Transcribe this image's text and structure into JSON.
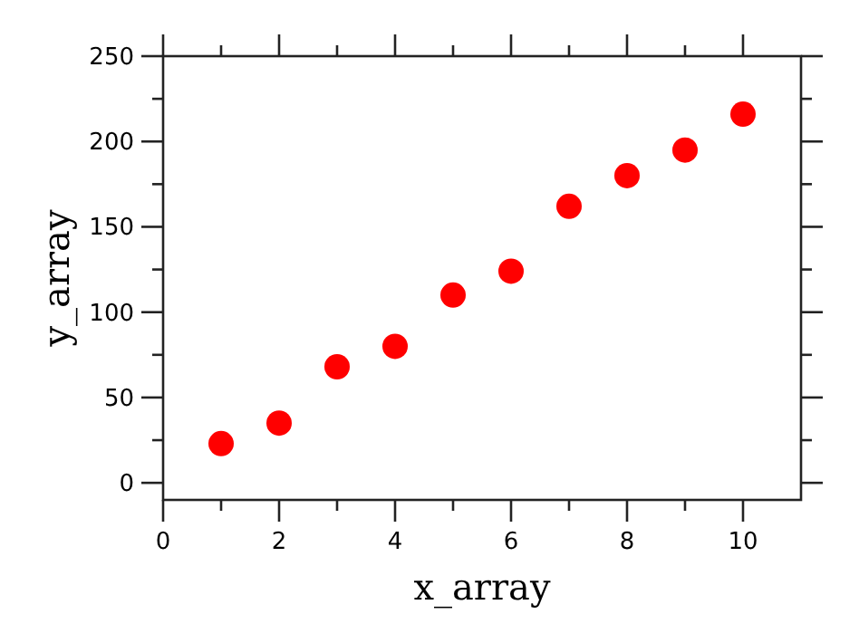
{
  "chart_data": {
    "type": "scatter",
    "xlabel": "x_array",
    "ylabel": "y_array",
    "x": [
      1,
      2,
      3,
      4,
      5,
      6,
      7,
      8,
      9,
      10
    ],
    "series": [
      {
        "color": "#ff0000",
        "values": [
          23,
          35,
          68,
          80,
          110,
          124,
          162,
          180,
          195,
          216
        ]
      }
    ],
    "xlim": [
      0,
      11
    ],
    "ylim": [
      -10,
      250
    ],
    "xticks": [
      0,
      {
        "value": 1,
        "label": null
      },
      2,
      {
        "value": 3,
        "label": null
      },
      4,
      {
        "value": 5,
        "label": null
      },
      6,
      {
        "value": 7,
        "label": null
      },
      8,
      {
        "value": 9,
        "label": null
      },
      10
    ],
    "yticks": [
      0,
      {
        "value": 25,
        "label": null
      },
      50,
      {
        "value": 75,
        "label": null
      },
      100,
      {
        "value": 125,
        "label": null
      },
      150,
      {
        "value": 175,
        "label": null
      },
      200,
      {
        "value": 225,
        "label": null
      },
      250
    ],
    "marker": "circle"
  }
}
